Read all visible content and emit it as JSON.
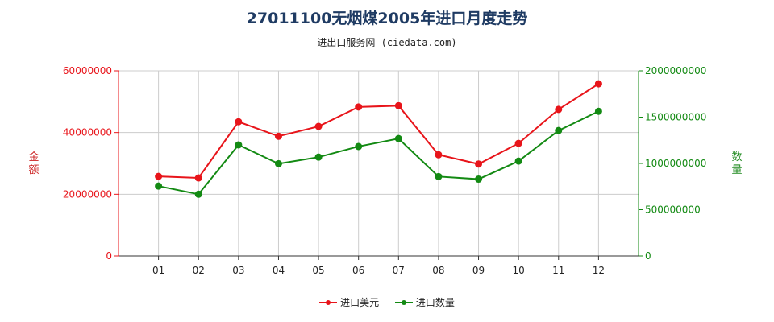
{
  "title": "27011100无烟煤2005年进口月度走势",
  "subtitle": "进出口服务网 (ciedata.com)",
  "colors": {
    "value_series": "#e8141a",
    "quantity_series": "#138a13",
    "grid": "#cccccc"
  },
  "chart_data": {
    "type": "line",
    "categories": [
      "01",
      "02",
      "03",
      "04",
      "05",
      "06",
      "07",
      "08",
      "09",
      "10",
      "11",
      "12"
    ],
    "y_left": {
      "label": "金额",
      "ylim": [
        0,
        60000000
      ],
      "ticks": [
        0,
        20000000,
        40000000,
        60000000
      ],
      "tick_labels": [
        "0",
        "20000000",
        "40000000",
        "60000000"
      ]
    },
    "y_right": {
      "label": "数量",
      "ylim": [
        0,
        2000000000
      ],
      "ticks": [
        0,
        500000000,
        1000000000,
        1500000000,
        2000000000
      ],
      "tick_labels": [
        "0",
        "500000000",
        "1000000000",
        "1500000000",
        "2000000000"
      ]
    },
    "series": [
      {
        "name": "进口美元",
        "axis": "left",
        "values": [
          25800000,
          25300000,
          43500000,
          38800000,
          42000000,
          48300000,
          48700000,
          32800000,
          29800000,
          36500000,
          47500000,
          55800000
        ]
      },
      {
        "name": "进口数量",
        "axis": "right",
        "values": [
          755000000,
          667000000,
          1200000000,
          997000000,
          1068000000,
          1183000000,
          1268000000,
          858000000,
          830000000,
          1025000000,
          1355000000,
          1563000000
        ]
      }
    ],
    "grid": true,
    "legend_position": "bottom-center"
  }
}
